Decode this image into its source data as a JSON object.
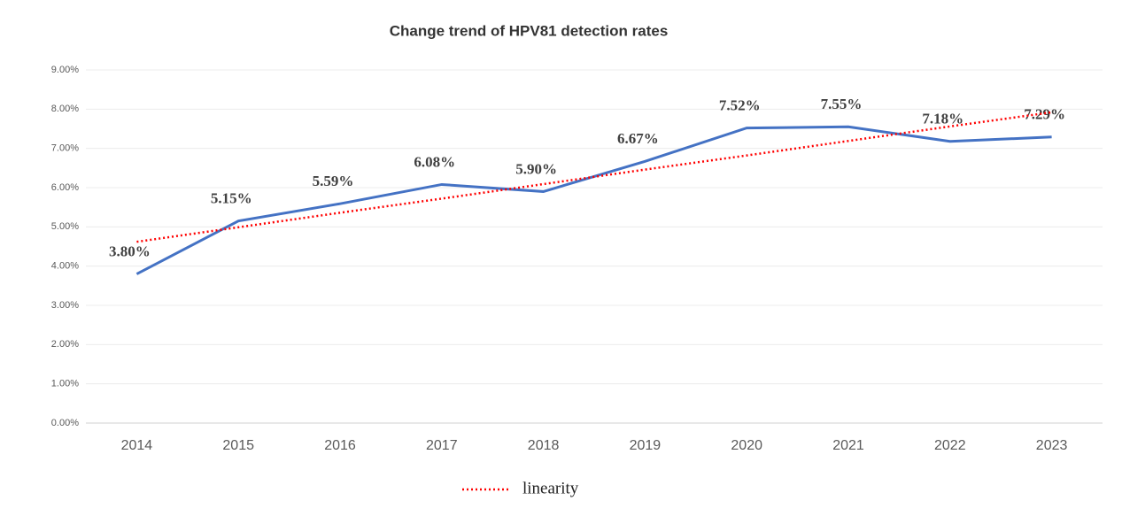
{
  "chart_data": {
    "type": "line",
    "title": "Change trend of HPV81 detection rates",
    "categories": [
      "2014",
      "2015",
      "2016",
      "2017",
      "2018",
      "2019",
      "2020",
      "2021",
      "2022",
      "2023"
    ],
    "series": [
      {
        "color": "#4472c4",
        "values": [
          3.8,
          5.15,
          5.59,
          6.08,
          5.9,
          6.67,
          7.52,
          7.55,
          7.18,
          7.29
        ],
        "value_labels": [
          "3.80%",
          "5.15%",
          "5.59%",
          "6.08%",
          "5.90%",
          "6.67%",
          "7.52%",
          "7.55%",
          "7.18%",
          "7.29%"
        ]
      },
      {
        "name": "linearity",
        "color": "#ff0000",
        "dash": "dotted",
        "values": [
          4.62,
          4.99,
          5.36,
          5.72,
          6.09,
          6.46,
          6.82,
          7.19,
          7.56,
          7.92
        ]
      }
    ],
    "ylim": [
      0,
      9
    ],
    "yticks": [
      {
        "value": 0,
        "label": "0.00%"
      },
      {
        "value": 1,
        "label": "1.00%"
      },
      {
        "value": 2,
        "label": "2.00%"
      },
      {
        "value": 3,
        "label": "3.00%"
      },
      {
        "value": 4,
        "label": "4.00%"
      },
      {
        "value": 5,
        "label": "5.00%"
      },
      {
        "value": 6,
        "label": "6.00%"
      },
      {
        "value": 7,
        "label": "7.00%"
      },
      {
        "value": 8,
        "label": "8.00%"
      },
      {
        "value": 9,
        "label": "9.00%"
      }
    ],
    "grid": true,
    "legend": "bottom"
  }
}
